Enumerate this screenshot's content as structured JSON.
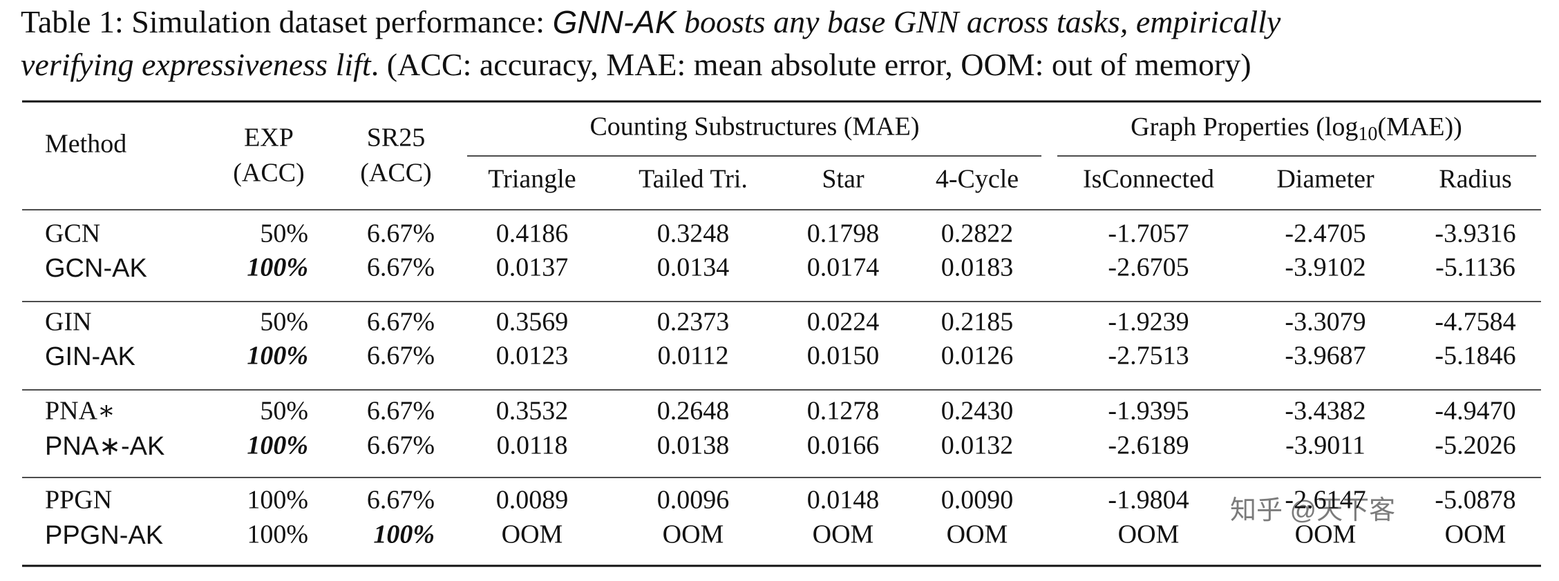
{
  "caption": {
    "lead": "Table 1: Simulation dataset performance:",
    "model": "GNN-AK",
    "claim": "boosts any base GNN across tasks, empirically",
    "claim2": "verifying expressiveness lift",
    "note": ". (ACC: accuracy, MAE: mean absolute error, OOM: out of memory)"
  },
  "table": {
    "header": {
      "method": "Method",
      "exp": [
        "EXP",
        "(ACC)"
      ],
      "sr25": [
        "SR25",
        "(ACC)"
      ],
      "group1": "Counting Substructures (MAE)",
      "group2": {
        "before": "Graph Properties (log",
        "sub": "10",
        "after": "(MAE))"
      },
      "columns": [
        "Triangle",
        "Tailed Tri.",
        "Star",
        "4-Cycle",
        "IsConnected",
        "Diameter",
        "Radius"
      ]
    },
    "rows": [
      {
        "method": "GCN",
        "cells": [
          "50%",
          "6.67%",
          "0.4186",
          "0.3248",
          "0.1798",
          "0.2822",
          "-1.7057",
          "-2.4705",
          "-3.9316"
        ],
        "bold": [],
        "font": "serif"
      },
      {
        "method": "GCN-AK",
        "cells": [
          "100%",
          "6.67%",
          "0.0137",
          "0.0134",
          "0.0174",
          "0.0183",
          "-2.6705",
          "-3.9102",
          "-5.1136"
        ],
        "bold": [
          0
        ],
        "font": "sans"
      },
      {
        "method": "GIN",
        "cells": [
          "50%",
          "6.67%",
          "0.3569",
          "0.2373",
          "0.0224",
          "0.2185",
          "-1.9239",
          "-3.3079",
          "-4.7584"
        ],
        "bold": [],
        "font": "serif"
      },
      {
        "method": "GIN-AK",
        "cells": [
          "100%",
          "6.67%",
          "0.0123",
          "0.0112",
          "0.0150",
          "0.0126",
          "-2.7513",
          "-3.9687",
          "-5.1846"
        ],
        "bold": [
          0
        ],
        "font": "sans"
      },
      {
        "method": "PNA∗",
        "cells": [
          "50%",
          "6.67%",
          "0.3532",
          "0.2648",
          "0.1278",
          "0.2430",
          "-1.9395",
          "-3.4382",
          "-4.9470"
        ],
        "bold": [],
        "font": "serif"
      },
      {
        "method": "PNA∗-AK",
        "cells": [
          "100%",
          "6.67%",
          "0.0118",
          "0.0138",
          "0.0166",
          "0.0132",
          "-2.6189",
          "-3.9011",
          "-5.2026"
        ],
        "bold": [
          0
        ],
        "font": "sans"
      },
      {
        "method": "PPGN",
        "cells": [
          "100%",
          "6.67%",
          "0.0089",
          "0.0096",
          "0.0148",
          "0.0090",
          "-1.9804",
          "-2.6147",
          "-5.0878"
        ],
        "bold": [],
        "font": "serif"
      },
      {
        "method": "PPGN-AK",
        "cells": [
          "100%",
          "100%",
          "OOM",
          "OOM",
          "OOM",
          "OOM",
          "OOM",
          "OOM",
          "OOM"
        ],
        "bold": [
          1
        ],
        "font": "sans"
      }
    ]
  },
  "watermark": "知乎 @天下客"
}
